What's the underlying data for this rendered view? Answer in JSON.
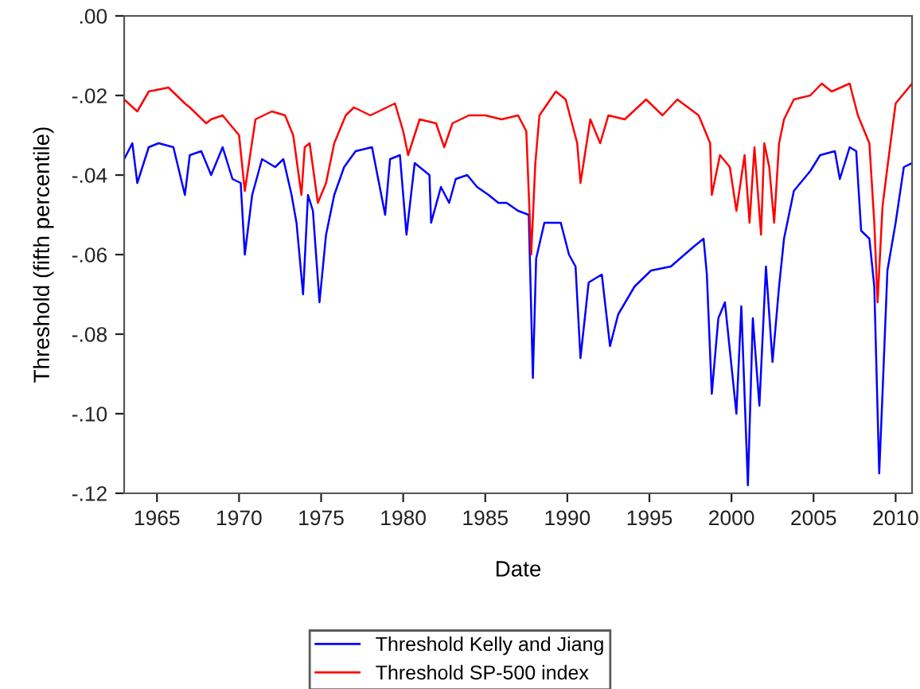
{
  "chart_data": {
    "type": "line",
    "xlabel": "Date",
    "ylabel": "Threshold (fifth percentile)",
    "xlim": [
      1963,
      2011
    ],
    "xticks": [
      1965,
      1970,
      1975,
      1980,
      1985,
      1990,
      1995,
      2000,
      2005,
      2010
    ],
    "ylim": [
      -0.12,
      0
    ],
    "yticks": [
      {
        "value": -0.12,
        "label": "-.12"
      },
      {
        "value": -0.1,
        "label": "-.10"
      },
      {
        "value": -0.08,
        "label": "-.08"
      },
      {
        "value": -0.06,
        "label": "-.06"
      },
      {
        "value": -0.04,
        "label": "-.04"
      },
      {
        "value": -0.02,
        "label": "-.02"
      },
      {
        "value": 0,
        "label": ".00"
      }
    ],
    "grid": false,
    "legend": "bottom",
    "marker": "none",
    "line_style": "solid",
    "series": [
      {
        "name": "Threshold Kelly and Jiang",
        "color": "#0000ff",
        "x": [
          1963,
          1963.5,
          1963.8,
          1964.5,
          1965.1,
          1966,
          1966.7,
          1967,
          1967.7,
          1968.3,
          1969,
          1969.6,
          1970.1,
          1970.35,
          1970.8,
          1971.4,
          1972.2,
          1972.7,
          1973.2,
          1973.5,
          1973.9,
          1974.2,
          1974.5,
          1974.9,
          1975.3,
          1975.8,
          1976.4,
          1977.1,
          1978.1,
          1978.9,
          1979.2,
          1979.8,
          1980.2,
          1980.7,
          1981.6,
          1981.7,
          1982.3,
          1982.8,
          1983.2,
          1983.9,
          1984.5,
          1985.2,
          1985.8,
          1986.3,
          1987,
          1987.65,
          1987.9,
          1988.1,
          1988.6,
          1989.6,
          1990.1,
          1990.5,
          1990.8,
          1991.3,
          1992.1,
          1992.6,
          1993.1,
          1994.1,
          1995.1,
          1996.3,
          1997.7,
          1998.3,
          1998.5,
          1998.8,
          1999.2,
          1999.6,
          2000.3,
          2000.6,
          2001,
          2001.3,
          2001.7,
          2002.1,
          2002.5,
          2002.9,
          2003.2,
          2003.8,
          2004.8,
          2005.4,
          2006.3,
          2006.6,
          2007.2,
          2007.6,
          2007.9,
          2008.4,
          2008.7,
          2009,
          2009.2,
          2009.5,
          2010,
          2010.5,
          2011
        ],
        "values": [
          -0.036,
          -0.032,
          -0.042,
          -0.033,
          -0.032,
          -0.033,
          -0.045,
          -0.035,
          -0.034,
          -0.04,
          -0.033,
          -0.041,
          -0.042,
          -0.06,
          -0.045,
          -0.036,
          -0.038,
          -0.036,
          -0.045,
          -0.052,
          -0.07,
          -0.045,
          -0.049,
          -0.072,
          -0.055,
          -0.045,
          -0.038,
          -0.034,
          -0.033,
          -0.05,
          -0.036,
          -0.035,
          -0.055,
          -0.037,
          -0.04,
          -0.052,
          -0.043,
          -0.047,
          -0.041,
          -0.04,
          -0.043,
          -0.045,
          -0.047,
          -0.047,
          -0.049,
          -0.05,
          -0.091,
          -0.061,
          -0.052,
          -0.052,
          -0.06,
          -0.063,
          -0.086,
          -0.067,
          -0.065,
          -0.083,
          -0.075,
          -0.068,
          -0.064,
          -0.063,
          -0.058,
          -0.056,
          -0.065,
          -0.095,
          -0.076,
          -0.072,
          -0.1,
          -0.073,
          -0.118,
          -0.076,
          -0.098,
          -0.063,
          -0.087,
          -0.068,
          -0.056,
          -0.044,
          -0.039,
          -0.035,
          -0.034,
          -0.041,
          -0.033,
          -0.034,
          -0.054,
          -0.056,
          -0.068,
          -0.115,
          -0.095,
          -0.064,
          -0.052,
          -0.038,
          -0.037
        ]
      },
      {
        "name": "Threshold SP-500 index",
        "color": "#ff0000",
        "x": [
          1963,
          1963.8,
          1964.5,
          1965.7,
          1966.7,
          1967,
          1968,
          1968.3,
          1969,
          1970,
          1970.35,
          1971,
          1972,
          1972.8,
          1973.3,
          1973.8,
          1974,
          1974.3,
          1974.8,
          1975.3,
          1975.8,
          1976.5,
          1977,
          1978,
          1979,
          1979.5,
          1980,
          1980.3,
          1981,
          1982,
          1982.5,
          1983,
          1984,
          1985,
          1986,
          1987,
          1987.5,
          1987.8,
          1988.05,
          1988.3,
          1989.3,
          1989.9,
          1990.6,
          1990.8,
          1991.4,
          1992,
          1992.5,
          1993.5,
          1994.8,
          1995.8,
          1996.7,
          1998,
          1998.7,
          1998.8,
          1999.3,
          1999.9,
          2000.3,
          2000.8,
          2001.1,
          2001.4,
          2001.8,
          2002,
          2002.3,
          2002.6,
          2002.9,
          2003.2,
          2003.8,
          2004.8,
          2005.5,
          2006.1,
          2007.2,
          2007.7,
          2008.4,
          2008.7,
          2008.9,
          2009.2,
          2009.5,
          2010,
          2010.6,
          2011
        ],
        "values": [
          -0.021,
          -0.024,
          -0.019,
          -0.018,
          -0.022,
          -0.023,
          -0.027,
          -0.026,
          -0.025,
          -0.03,
          -0.044,
          -0.026,
          -0.024,
          -0.025,
          -0.03,
          -0.045,
          -0.033,
          -0.032,
          -0.047,
          -0.042,
          -0.032,
          -0.025,
          -0.023,
          -0.025,
          -0.023,
          -0.022,
          -0.029,
          -0.035,
          -0.026,
          -0.027,
          -0.033,
          -0.027,
          -0.025,
          -0.025,
          -0.026,
          -0.025,
          -0.029,
          -0.06,
          -0.037,
          -0.025,
          -0.019,
          -0.021,
          -0.032,
          -0.042,
          -0.026,
          -0.032,
          -0.025,
          -0.026,
          -0.021,
          -0.025,
          -0.021,
          -0.025,
          -0.032,
          -0.045,
          -0.035,
          -0.038,
          -0.049,
          -0.035,
          -0.052,
          -0.033,
          -0.055,
          -0.032,
          -0.038,
          -0.052,
          -0.032,
          -0.026,
          -0.021,
          -0.02,
          -0.017,
          -0.019,
          -0.017,
          -0.025,
          -0.032,
          -0.052,
          -0.072,
          -0.048,
          -0.038,
          -0.022,
          -0.019,
          -0.017
        ]
      }
    ]
  }
}
